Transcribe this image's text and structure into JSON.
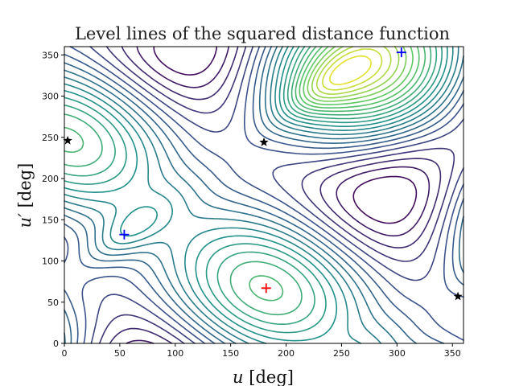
{
  "chart_data": {
    "type": "contour",
    "title": "Level lines of the squared distance function",
    "xlabel_var": "u",
    "xlabel_unit": " [deg]",
    "ylabel_var": "u′",
    "ylabel_unit": " [deg]",
    "xlim": [
      0,
      360
    ],
    "ylim": [
      0,
      360
    ],
    "xticks": [
      0,
      50,
      100,
      150,
      200,
      250,
      300,
      350
    ],
    "yticks": [
      0,
      50,
      100,
      150,
      200,
      250,
      300,
      350
    ],
    "colormap": [
      "#440154",
      "#3b528b",
      "#21918c",
      "#5ec962",
      "#fde725"
    ],
    "contour_levels": 24,
    "minima": [
      {
        "u": 54,
        "u_prime": 132,
        "color": "#0000ff",
        "marker": "plus"
      },
      {
        "u": 304,
        "u_prime": 353,
        "color": "#0000ff",
        "marker": "plus"
      }
    ],
    "global_minimum": {
      "u": 182,
      "u_prime": 67,
      "color": "#ff0000",
      "marker": "plus"
    },
    "saddle_points": [
      {
        "u": 3,
        "u_prime": 246,
        "color": "#000000",
        "marker": "star"
      },
      {
        "u": 180,
        "u_prime": 244,
        "color": "#000000",
        "marker": "star"
      },
      {
        "u": 355,
        "u_prime": 57,
        "color": "#000000",
        "marker": "star"
      }
    ]
  }
}
